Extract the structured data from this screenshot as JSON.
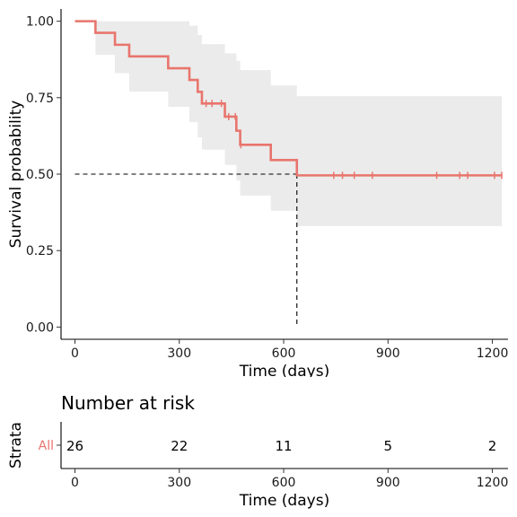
{
  "chart_data": [
    {
      "type": "line",
      "subtype": "kaplan-meier",
      "title": "",
      "xlabel": "Time (days)",
      "ylabel": "Survival probability",
      "xlim": [
        -40,
        1245
      ],
      "ylim": [
        -0.04,
        1.04
      ],
      "x_ticks": [
        0,
        300,
        600,
        900,
        1200
      ],
      "y_ticks": [
        0.0,
        0.25,
        0.5,
        0.75,
        1.0
      ],
      "y_tick_labels": [
        "0.00",
        "0.25",
        "0.50",
        "0.75",
        "1.00"
      ],
      "grid": false,
      "legend": "none",
      "colors": {
        "line": "#E8756D",
        "ci": "#EBEBEB",
        "median": "#000000"
      },
      "series": [
        {
          "steps": [
            [
              0,
              1.0
            ],
            [
              59,
              0.962
            ],
            [
              115,
              0.923
            ],
            [
              156,
              0.885
            ],
            [
              268,
              0.846
            ],
            [
              329,
              0.808
            ],
            [
              353,
              0.769
            ],
            [
              365,
              0.731
            ],
            [
              431,
              0.688
            ],
            [
              464,
              0.642
            ],
            [
              475,
              0.596
            ],
            [
              563,
              0.546
            ],
            [
              638,
              0.496
            ],
            [
              1227,
              0.496
            ]
          ],
          "ci_upper": [
            [
              0,
              1.0
            ],
            [
              59,
              1.0
            ],
            [
              115,
              1.0
            ],
            [
              156,
              1.0
            ],
            [
              268,
              1.0
            ],
            [
              329,
              0.985
            ],
            [
              353,
              0.955
            ],
            [
              365,
              0.925
            ],
            [
              431,
              0.895
            ],
            [
              464,
              0.87
            ],
            [
              475,
              0.84
            ],
            [
              563,
              0.79
            ],
            [
              638,
              0.755
            ],
            [
              1227,
              0.755
            ]
          ],
          "ci_lower": [
            [
              0,
              1.0
            ],
            [
              59,
              0.89
            ],
            [
              115,
              0.83
            ],
            [
              156,
              0.77
            ],
            [
              268,
              0.72
            ],
            [
              329,
              0.67
            ],
            [
              353,
              0.62
            ],
            [
              365,
              0.58
            ],
            [
              431,
              0.53
            ],
            [
              464,
              0.48
            ],
            [
              475,
              0.43
            ],
            [
              563,
              0.38
            ],
            [
              638,
              0.33
            ],
            [
              1227,
              0.33
            ]
          ],
          "censored": [
            [
              377,
              0.731
            ],
            [
              394,
              0.731
            ],
            [
              421,
              0.731
            ],
            [
              442,
              0.688
            ],
            [
              461,
              0.688
            ],
            [
              477,
              0.596
            ],
            [
              744,
              0.496
            ],
            [
              769,
              0.496
            ],
            [
              803,
              0.496
            ],
            [
              855,
              0.496
            ],
            [
              1040,
              0.496
            ],
            [
              1106,
              0.496
            ],
            [
              1129,
              0.496
            ],
            [
              1206,
              0.496
            ],
            [
              1227,
              0.496
            ]
          ],
          "median_survival": 638
        }
      ]
    },
    {
      "type": "table",
      "title": "Number at risk",
      "xlabel": "Time (days)",
      "ylabel": "Strata",
      "x_ticks": [
        0,
        300,
        600,
        900,
        1200
      ],
      "rows": [
        {
          "name": "All",
          "times": [
            0,
            300,
            600,
            900,
            1200
          ],
          "values": [
            26,
            22,
            11,
            5,
            2
          ]
        }
      ]
    }
  ]
}
